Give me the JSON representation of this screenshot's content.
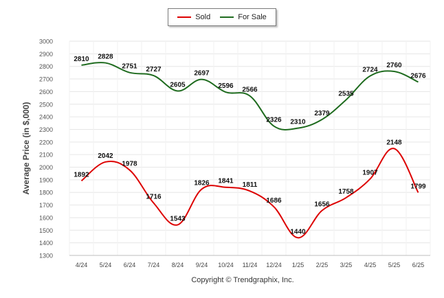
{
  "chart_data": {
    "type": "line",
    "categories": [
      "4/24",
      "5/24",
      "6/24",
      "7/24",
      "8/24",
      "9/24",
      "10/24",
      "11/24",
      "12/24",
      "1/25",
      "2/25",
      "3/25",
      "4/25",
      "5/25",
      "6/25"
    ],
    "series": [
      {
        "name": "Sold",
        "color": "#dd0000",
        "values": [
          1892,
          2042,
          1978,
          1716,
          1543,
          1826,
          1841,
          1811,
          1686,
          1440,
          1656,
          1758,
          1907,
          2148,
          1799
        ]
      },
      {
        "name": "For Sale",
        "color": "#1e6b1e",
        "values": [
          2810,
          2828,
          2751,
          2727,
          2605,
          2697,
          2596,
          2566,
          2326,
          2310,
          2379,
          2535,
          2724,
          2760,
          2676
        ]
      }
    ],
    "ylabel": "Average Price (in $,000)",
    "ylim": [
      1300,
      3000
    ],
    "yticks": [
      1300,
      1400,
      1500,
      1600,
      1700,
      1800,
      1900,
      2000,
      2100,
      2200,
      2300,
      2400,
      2500,
      2600,
      2700,
      2800,
      2900,
      3000
    ],
    "grid": true,
    "legend": "top-center"
  },
  "footer": {
    "copyright": "Copyright © Trendgraphix, Inc."
  }
}
